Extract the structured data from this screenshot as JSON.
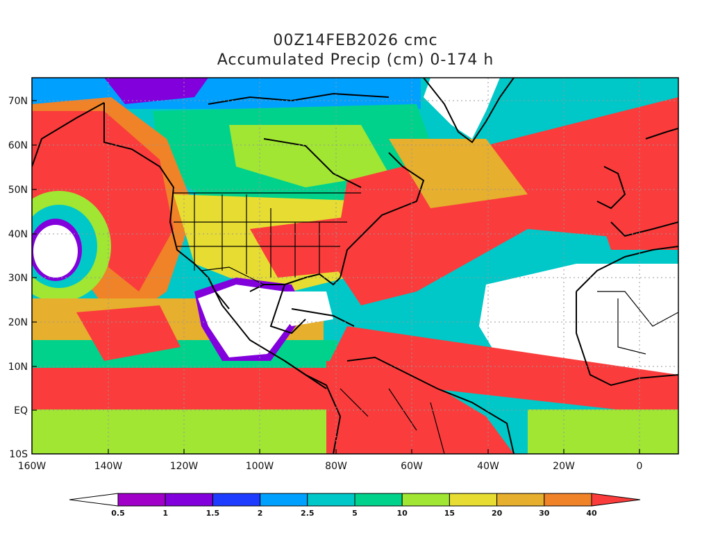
{
  "title_line1": "00Z14FEB2026 cmc",
  "title_line2": "Accumulated Precip (cm) 0-174 h",
  "lon_ticks": [
    "160W",
    "140W",
    "120W",
    "100W",
    "80W",
    "60W",
    "40W",
    "20W",
    "0"
  ],
  "lat_ticks": [
    "70N",
    "60N",
    "50N",
    "40N",
    "30N",
    "20N",
    "10N",
    "EQ",
    "10S"
  ],
  "colorbar": {
    "labels": [
      "0.5",
      "1",
      "1.5",
      "2",
      "2.5",
      "5",
      "10",
      "15",
      "20",
      "30",
      "40"
    ],
    "colors": [
      "#ffffff",
      "#a000c8",
      "#8200dc",
      "#1e3cff",
      "#00a0ff",
      "#00c8c8",
      "#00d28c",
      "#a0e632",
      "#e6dc32",
      "#e6af2d",
      "#f08228",
      "#fa3c3c"
    ]
  }
}
